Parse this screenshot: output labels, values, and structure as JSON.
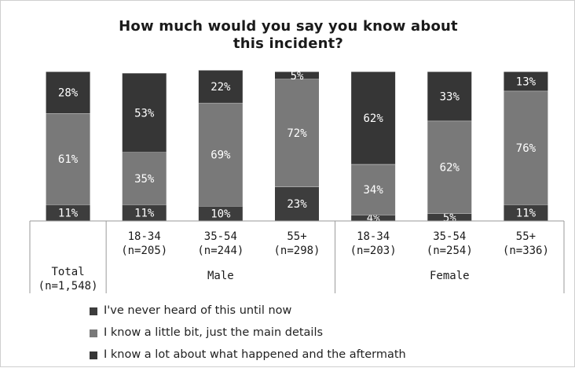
{
  "chart_data": {
    "type": "bar",
    "stacked": true,
    "percent_stacked": true,
    "title_lines": [
      "How much would you say you know about",
      "this incident?"
    ],
    "categories": [
      {
        "label_lines": [
          "Total",
          "(n=1,548)"
        ],
        "group": ""
      },
      {
        "label_lines": [
          "18-34",
          "(n=205)"
        ],
        "group": "Male"
      },
      {
        "label_lines": [
          "35-54",
          "(n=244)"
        ],
        "group": "Male"
      },
      {
        "label_lines": [
          "55+",
          "(n=298)"
        ],
        "group": "Male"
      },
      {
        "label_lines": [
          "18-34",
          "(n=203)"
        ],
        "group": "Female"
      },
      {
        "label_lines": [
          "35-54",
          "(n=254)"
        ],
        "group": "Female"
      },
      {
        "label_lines": [
          "55+",
          "(n=336)"
        ],
        "group": "Female"
      }
    ],
    "groups": [
      "Male",
      "Female"
    ],
    "series": [
      {
        "name": "I've never heard of this until now",
        "color": "#3d3d3d",
        "values": [
          11,
          11,
          10,
          23,
          4,
          5,
          11
        ],
        "labels": [
          "11%",
          "11%",
          "10%",
          "23%",
          "4%",
          "5%",
          "11%"
        ]
      },
      {
        "name": "I know a little bit, just the main details",
        "color": "#797979",
        "values": [
          61,
          35,
          69,
          72,
          34,
          62,
          76
        ],
        "labels": [
          "61%",
          "35%",
          "69%",
          "72%",
          "34%",
          "62%",
          "76%"
        ]
      },
      {
        "name": "I know a lot about what happened and the aftermath",
        "color": "#363636",
        "values": [
          28,
          53,
          22,
          5,
          62,
          33,
          13
        ],
        "labels": [
          "28%",
          "53%",
          "22%",
          "5%",
          "62%",
          "33%",
          "13%"
        ]
      }
    ],
    "legend_position": "bottom-left",
    "ylim": [
      0,
      100
    ],
    "grid": false
  }
}
